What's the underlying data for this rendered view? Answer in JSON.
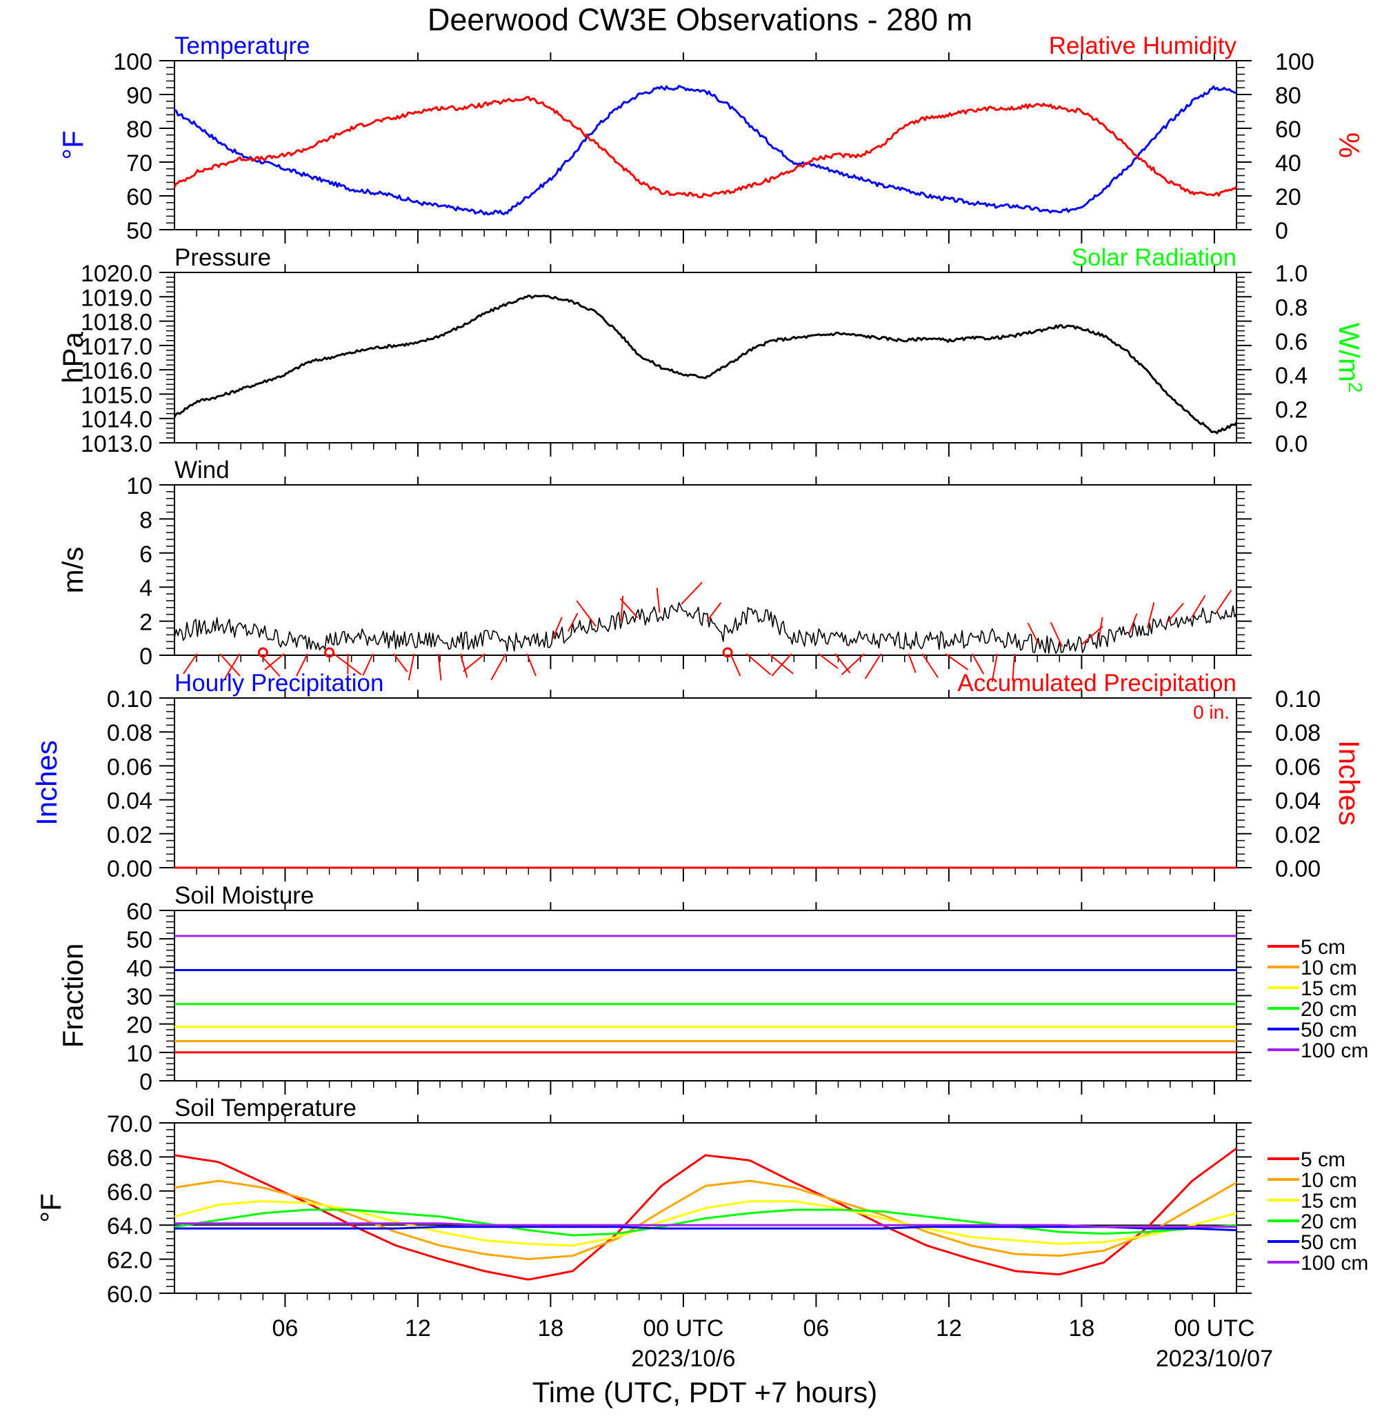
{
  "title": "Deerwood CW3E Observations - 280 m",
  "x_axis": {
    "label": "Time (UTC, PDT +7 hours)",
    "ticks": [
      "06",
      "12",
      "18",
      "00 UTC",
      "06",
      "12",
      "18",
      "00 UTC"
    ],
    "dates": [
      "2023/10/6",
      "2023/10/07"
    ]
  },
  "chart_data": [
    {
      "type": "line",
      "panel": "temperature-humidity",
      "title": "Temperature",
      "title_right": "Relative Humidity",
      "ylabel": "°F",
      "ylabel_right": "%",
      "ylim": [
        50,
        100
      ],
      "ylim_right": [
        0,
        100
      ],
      "yticks": [
        "100",
        "90",
        "80",
        "70",
        "60",
        "50"
      ],
      "yticks_right": [
        "100",
        "80",
        "60",
        "40",
        "20",
        "0"
      ],
      "x_hours": [
        1,
        2,
        3,
        4,
        5,
        6,
        7,
        8,
        9,
        10,
        11,
        12,
        13,
        14,
        15,
        16,
        17,
        18,
        19,
        20,
        21,
        22,
        23,
        24,
        25,
        26,
        27,
        28,
        29,
        30,
        31,
        32,
        33,
        34,
        35,
        36,
        37,
        38,
        39,
        40,
        41,
        42,
        43,
        44,
        45,
        46,
        47,
        48,
        49
      ],
      "series": [
        {
          "color": "#0000ff",
          "axis": "left",
          "values": [
            85,
            81,
            76,
            72,
            70,
            68,
            66,
            64,
            62,
            61,
            60,
            58,
            57,
            56,
            55,
            55,
            60,
            65,
            72,
            80,
            86,
            90,
            92,
            92,
            91,
            87,
            81,
            75,
            70,
            69,
            67,
            65,
            63,
            62,
            60,
            59,
            58,
            57,
            57,
            56,
            55,
            57,
            62,
            68,
            75,
            82,
            88,
            92,
            91
          ]
        },
        {
          "color": "#ff0000",
          "axis": "right",
          "values": [
            26,
            34,
            38,
            42,
            42,
            44,
            48,
            54,
            60,
            64,
            66,
            70,
            72,
            72,
            74,
            76,
            78,
            72,
            62,
            52,
            40,
            28,
            22,
            21,
            20,
            22,
            26,
            30,
            36,
            42,
            44,
            44,
            50,
            62,
            66,
            68,
            70,
            72,
            72,
            74,
            72,
            70,
            62,
            50,
            38,
            28,
            22,
            20,
            25
          ]
        }
      ]
    },
    {
      "type": "line",
      "panel": "pressure",
      "title": "Pressure",
      "title_right": "Solar Radiation",
      "ylabel": "hPa",
      "ylabel_right": "W/m",
      "ylabel_right_sup": "2",
      "ylim": [
        1013.0,
        1020.0
      ],
      "ylim_right": [
        0.0,
        1.0
      ],
      "yticks": [
        "1020.0",
        "1019.0",
        "1018.0",
        "1017.0",
        "1016.0",
        "1015.0",
        "1014.0",
        "1013.0"
      ],
      "yticks_right": [
        "1.0",
        "0.8",
        "0.6",
        "0.4",
        "0.2",
        "0.0"
      ],
      "x_hours": [
        1,
        2,
        3,
        4,
        5,
        6,
        7,
        8,
        9,
        10,
        11,
        12,
        13,
        14,
        15,
        16,
        17,
        18,
        19,
        20,
        21,
        22,
        23,
        24,
        25,
        26,
        27,
        28,
        29,
        30,
        31,
        32,
        33,
        34,
        35,
        36,
        37,
        38,
        39,
        40,
        41,
        42,
        43,
        44,
        45,
        46,
        47,
        48,
        49
      ],
      "series": [
        {
          "color": "#000000",
          "axis": "left",
          "values": [
            1014.1,
            1014.7,
            1014.9,
            1015.2,
            1015.5,
            1015.8,
            1016.3,
            1016.5,
            1016.7,
            1016.9,
            1017.0,
            1017.1,
            1017.4,
            1017.8,
            1018.3,
            1018.7,
            1019.0,
            1019.0,
            1018.8,
            1018.4,
            1017.6,
            1016.6,
            1016.1,
            1015.8,
            1015.7,
            1016.2,
            1016.8,
            1017.2,
            1017.3,
            1017.4,
            1017.5,
            1017.4,
            1017.3,
            1017.2,
            1017.3,
            1017.2,
            1017.3,
            1017.3,
            1017.4,
            1017.6,
            1017.8,
            1017.7,
            1017.4,
            1016.8,
            1015.9,
            1014.9,
            1014.1,
            1013.4,
            1013.8
          ]
        }
      ]
    },
    {
      "type": "line",
      "panel": "wind",
      "title": "Wind",
      "ylabel": "m/s",
      "ylim": [
        0,
        10
      ],
      "yticks": [
        "10",
        "8",
        "6",
        "4",
        "2",
        "0"
      ],
      "x_hours": [
        1,
        2,
        3,
        4,
        5,
        6,
        7,
        8,
        9,
        10,
        11,
        12,
        13,
        14,
        15,
        16,
        17,
        18,
        19,
        20,
        21,
        22,
        23,
        24,
        25,
        26,
        27,
        28,
        29,
        30,
        31,
        32,
        33,
        34,
        35,
        36,
        37,
        38,
        39,
        40,
        41,
        42,
        43,
        44,
        45,
        46,
        47,
        48,
        49
      ],
      "series": [
        {
          "color": "#000000",
          "axis": "left",
          "values": [
            1.2,
            1.6,
            1.8,
            1.5,
            1.3,
            0.9,
            0.8,
            0.9,
            1.0,
            1.1,
            0.9,
            0.8,
            0.9,
            0.8,
            1.0,
            0.8,
            0.7,
            1.0,
            1.4,
            1.7,
            2.0,
            2.2,
            2.5,
            3.0,
            2.0,
            1.2,
            2.5,
            2.0,
            1.0,
            1.0,
            1.0,
            0.9,
            0.8,
            0.9,
            0.8,
            0.9,
            1.0,
            1.0,
            0.8,
            0.7,
            0.5,
            0.6,
            1.0,
            1.3,
            1.6,
            1.9,
            2.2,
            2.5,
            2.4
          ]
        }
      ],
      "calm_markers": [
        5,
        8,
        26
      ]
    },
    {
      "type": "line",
      "panel": "precipitation",
      "title": "Hourly Precipitation",
      "title_right": "Accumulated Precipitation",
      "accumulated_label": "0 in.",
      "ylabel": "Inches",
      "ylabel_right": "Inches",
      "ylim": [
        0.0,
        0.1
      ],
      "ylim_right": [
        0.0,
        0.1
      ],
      "yticks": [
        "0.10",
        "0.08",
        "0.06",
        "0.04",
        "0.02",
        "0.00"
      ],
      "yticks_right": [
        "0.10",
        "0.08",
        "0.06",
        "0.04",
        "0.02",
        "0.00"
      ],
      "x_hours": [
        1,
        49
      ],
      "series": [
        {
          "color": "#0000ff",
          "axis": "left",
          "values": [
            0,
            0
          ]
        },
        {
          "color": "#ff0000",
          "axis": "right",
          "values": [
            0,
            0
          ]
        }
      ]
    },
    {
      "type": "line",
      "panel": "soil-moisture",
      "title": "Soil Moisture",
      "ylabel": "Fraction",
      "ylim": [
        0,
        60
      ],
      "yticks": [
        "60",
        "50",
        "40",
        "30",
        "20",
        "10",
        "0"
      ],
      "x_hours": [
        1,
        49
      ],
      "series": [
        {
          "name": "5 cm",
          "color": "#ff0000",
          "values": [
            10,
            10
          ]
        },
        {
          "name": "10 cm",
          "color": "#ffa500",
          "values": [
            14,
            14
          ]
        },
        {
          "name": "15 cm",
          "color": "#ffff00",
          "values": [
            19,
            19
          ]
        },
        {
          "name": "20 cm",
          "color": "#00ff00",
          "values": [
            27,
            27
          ]
        },
        {
          "name": "50 cm",
          "color": "#0000ff",
          "values": [
            39,
            39
          ]
        },
        {
          "name": "100 cm",
          "color": "#a020f0",
          "values": [
            51,
            51
          ]
        }
      ]
    },
    {
      "type": "line",
      "panel": "soil-temperature",
      "title": "Soil Temperature",
      "ylabel": "°F",
      "ylim": [
        60.0,
        70.0
      ],
      "yticks": [
        "70.0",
        "68.0",
        "66.0",
        "64.0",
        "62.0",
        "60.0"
      ],
      "x_hours": [
        1,
        3,
        5,
        7,
        9,
        11,
        13,
        15,
        17,
        19,
        21,
        23,
        25,
        27,
        29,
        31,
        33,
        35,
        37,
        39,
        41,
        43,
        45,
        47,
        49
      ],
      "series": [
        {
          "name": "5 cm",
          "color": "#ff0000",
          "values": [
            68.1,
            67.7,
            66.5,
            65.3,
            64.0,
            62.8,
            62.0,
            61.3,
            60.8,
            61.3,
            63.5,
            66.3,
            68.1,
            67.8,
            66.5,
            65.3,
            64.0,
            62.8,
            62.0,
            61.3,
            61.1,
            61.8,
            63.9,
            66.6,
            68.5
          ]
        },
        {
          "name": "10 cm",
          "color": "#ffa500",
          "values": [
            66.2,
            66.6,
            66.2,
            65.5,
            64.6,
            63.6,
            62.8,
            62.3,
            62.0,
            62.2,
            63.2,
            64.8,
            66.3,
            66.6,
            66.2,
            65.4,
            64.6,
            63.6,
            62.8,
            62.3,
            62.2,
            62.5,
            63.5,
            65.0,
            66.5
          ]
        },
        {
          "name": "15 cm",
          "color": "#ffff00",
          "values": [
            64.5,
            65.2,
            65.4,
            65.3,
            64.9,
            64.2,
            63.6,
            63.1,
            62.9,
            62.8,
            63.3,
            64.2,
            65.0,
            65.4,
            65.4,
            65.0,
            64.4,
            63.8,
            63.3,
            63.1,
            62.9,
            63.0,
            63.4,
            64.0,
            64.7
          ]
        },
        {
          "name": "20 cm",
          "color": "#00ff00",
          "values": [
            63.9,
            64.3,
            64.7,
            64.9,
            64.9,
            64.7,
            64.5,
            64.1,
            63.7,
            63.4,
            63.5,
            63.9,
            64.4,
            64.7,
            64.9,
            64.9,
            64.8,
            64.5,
            64.2,
            63.9,
            63.6,
            63.5,
            63.6,
            63.8,
            64.0
          ]
        },
        {
          "name": "50 cm",
          "color": "#0000ff",
          "values": [
            63.8,
            63.8,
            63.8,
            63.8,
            63.8,
            63.8,
            63.9,
            63.9,
            63.9,
            63.9,
            63.9,
            63.8,
            63.8,
            63.8,
            63.8,
            63.8,
            63.8,
            63.9,
            63.9,
            63.9,
            63.9,
            63.9,
            63.8,
            63.8,
            63.7
          ]
        },
        {
          "name": "100 cm",
          "color": "#a020f0",
          "values": [
            64.1,
            64.1,
            64.1,
            64.1,
            64.1,
            64.1,
            64.1,
            64.0,
            64.0,
            64.0,
            64.0,
            64.0,
            64.0,
            64.0,
            64.0,
            64.0,
            64.0,
            64.0,
            64.0,
            64.0,
            64.0,
            63.9,
            63.9,
            63.9,
            63.9
          ]
        }
      ]
    }
  ],
  "colors": {
    "temperature": "#0000ff",
    "humidity": "#ff0000",
    "solar": "#00ff00",
    "wind_barb": "#ff0000"
  }
}
